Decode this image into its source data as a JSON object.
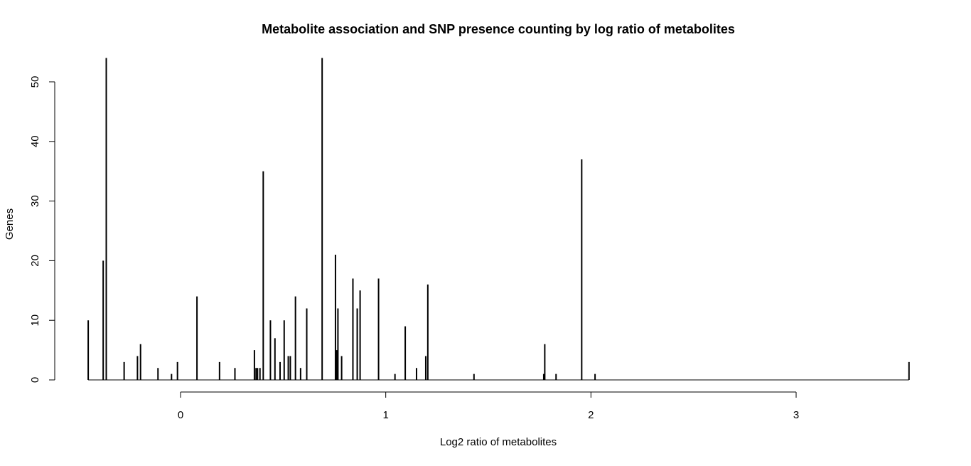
{
  "chart_data": {
    "type": "bar",
    "title": "Metabolite association and SNP presence counting by log ratio of metabolites",
    "xlabel": "Log2 ratio of metabolites",
    "ylabel": "Genes",
    "xlim": [
      -0.5,
      3.57
    ],
    "ylim": [
      0,
      54
    ],
    "xticks": [
      0,
      1,
      2,
      3
    ],
    "yticks": [
      0,
      10,
      20,
      30,
      40,
      50
    ],
    "grid": false,
    "legend": "none",
    "bar_color": "#000000",
    "series": [
      {
        "x": [
          -0.45,
          -0.377,
          -0.362,
          -0.275,
          -0.21,
          -0.195,
          -0.11,
          -0.044,
          -0.015,
          0.08,
          0.19,
          0.265,
          0.36,
          0.368,
          0.375,
          0.387,
          0.403,
          0.438,
          0.46,
          0.485,
          0.505,
          0.525,
          0.535,
          0.56,
          0.585,
          0.615,
          0.69,
          0.755,
          0.761,
          0.767,
          0.785,
          0.84,
          0.861,
          0.875,
          0.965,
          1.045,
          1.095,
          1.15,
          1.195,
          1.205,
          1.43,
          1.77,
          1.775,
          1.83,
          1.955,
          2.02,
          3.55
        ],
        "values": [
          10,
          20,
          54,
          3,
          4,
          6,
          2,
          1,
          3,
          14,
          3,
          2,
          5,
          2,
          2,
          2,
          35,
          10,
          7,
          3,
          10,
          4,
          4,
          14,
          2,
          12,
          54,
          21,
          5,
          12,
          4,
          17,
          12,
          15,
          17,
          1,
          9,
          2,
          4,
          16,
          1,
          1,
          6,
          1,
          37,
          1,
          3
        ]
      }
    ]
  }
}
